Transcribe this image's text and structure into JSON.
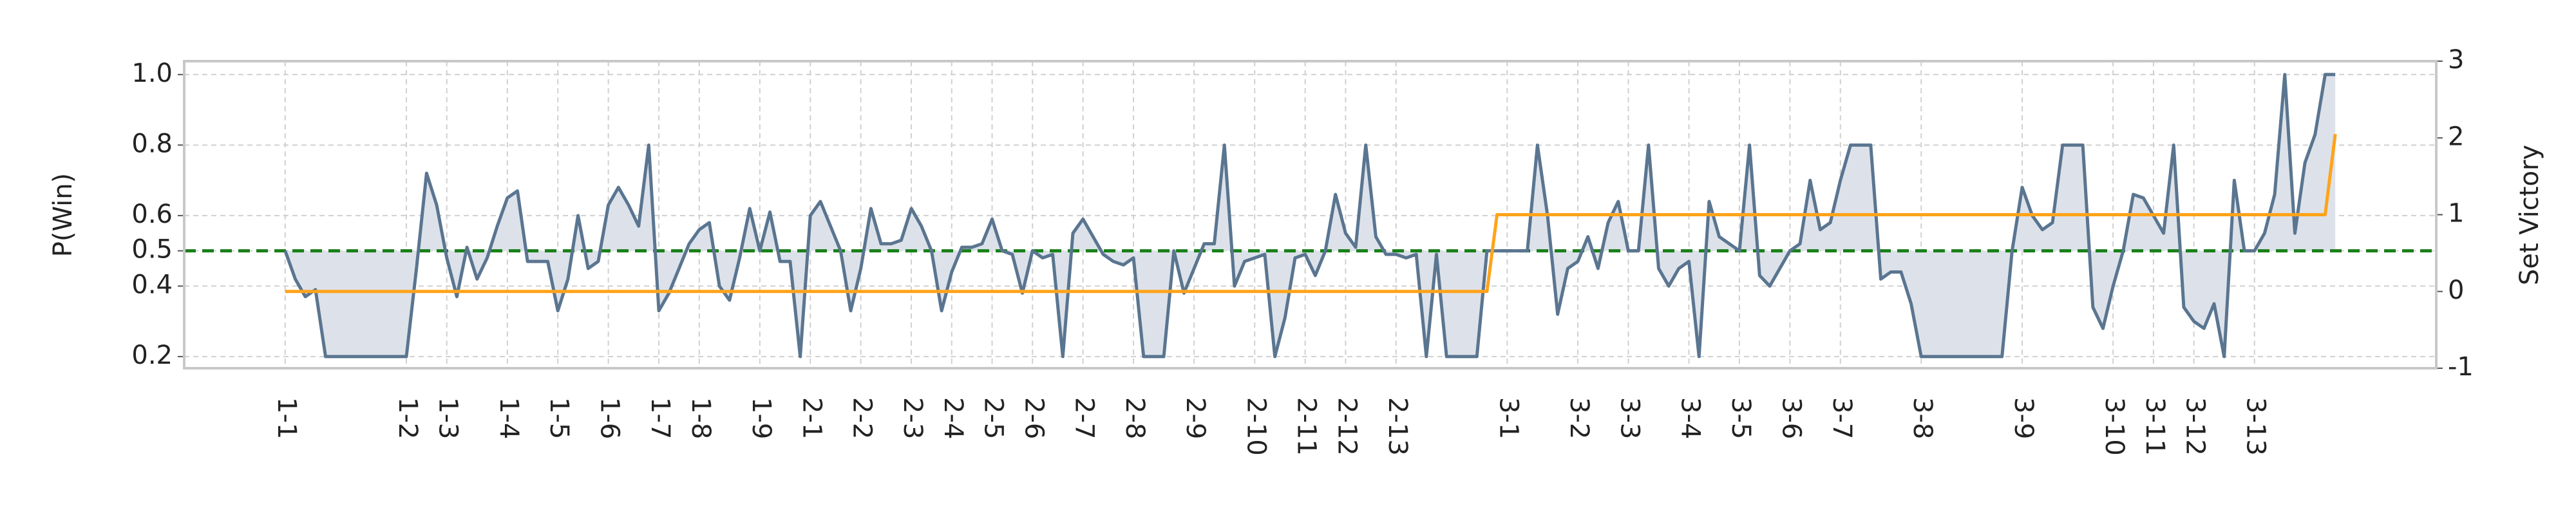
{
  "chart_data": {
    "type": "line",
    "y_label": "P(Win)",
    "y2_label": "Set Victory",
    "xlim": [
      -10,
      213
    ],
    "ylim": [
      0.167,
      1.038
    ],
    "y2lim": [
      -1,
      3
    ],
    "yticks": [
      0.2,
      0.4,
      0.5,
      0.6,
      0.8,
      {
        "value": 1.0,
        "label": "1.0"
      }
    ],
    "y2ticks": [
      -1,
      0,
      1,
      2,
      3
    ],
    "xticks": [
      {
        "value": 0,
        "label": "1-1"
      },
      {
        "value": 12,
        "label": "1-2"
      },
      {
        "value": 16,
        "label": "1-3"
      },
      {
        "value": 22,
        "label": "1-4"
      },
      {
        "value": 27,
        "label": "1-5"
      },
      {
        "value": 32,
        "label": "1-6"
      },
      {
        "value": 37,
        "label": "1-7"
      },
      {
        "value": 41,
        "label": "1-8"
      },
      {
        "value": 47,
        "label": "1-9"
      },
      {
        "value": 52,
        "label": "2-1"
      },
      {
        "value": 57,
        "label": "2-2"
      },
      {
        "value": 62,
        "label": "2-3"
      },
      {
        "value": 66,
        "label": "2-4"
      },
      {
        "value": 70,
        "label": "2-5"
      },
      {
        "value": 74,
        "label": "2-6"
      },
      {
        "value": 79,
        "label": "2-7"
      },
      {
        "value": 84,
        "label": "2-8"
      },
      {
        "value": 90,
        "label": "2-9"
      },
      {
        "value": 96,
        "label": "2-10"
      },
      {
        "value": 101,
        "label": "2-11"
      },
      {
        "value": 105,
        "label": "2-12"
      },
      {
        "value": 110,
        "label": "2-13"
      },
      {
        "value": 121,
        "label": "3-1"
      },
      {
        "value": 128,
        "label": "3-2"
      },
      {
        "value": 133,
        "label": "3-3"
      },
      {
        "value": 139,
        "label": "3-4"
      },
      {
        "value": 144,
        "label": "3-5"
      },
      {
        "value": 149,
        "label": "3-6"
      },
      {
        "value": 154,
        "label": "3-7"
      },
      {
        "value": 162,
        "label": "3-8"
      },
      {
        "value": 172,
        "label": "3-9"
      },
      {
        "value": 181,
        "label": "3-10"
      },
      {
        "value": 185,
        "label": "3-11"
      },
      {
        "value": 189,
        "label": "3-12"
      },
      {
        "value": 195,
        "label": "3-13"
      }
    ],
    "grid": true,
    "reference_line": {
      "value": 0.5,
      "color": "#1a7f1a"
    },
    "fill_baseline": 0.5,
    "fill_color": "#dde2ea",
    "series": [
      {
        "color": "#5a7590",
        "values": [
          0.5,
          0.42,
          0.37,
          0.39,
          0.2,
          0.2,
          0.2,
          0.2,
          0.2,
          0.2,
          0.2,
          0.2,
          0.2,
          0.45,
          0.72,
          0.63,
          0.48,
          0.37,
          0.51,
          0.42,
          0.48,
          0.57,
          0.65,
          0.67,
          0.47,
          0.47,
          0.47,
          0.33,
          0.42,
          0.6,
          0.45,
          0.47,
          0.63,
          0.68,
          0.63,
          0.57,
          0.8,
          0.33,
          0.38,
          0.45,
          0.52,
          0.56,
          0.58,
          0.4,
          0.36,
          0.48,
          0.62,
          0.5,
          0.61,
          0.47,
          0.47,
          0.2,
          0.6,
          0.64,
          0.57,
          0.5,
          0.33,
          0.45,
          0.62,
          0.52,
          0.52,
          0.53,
          0.62,
          0.57,
          0.5,
          0.33,
          0.44,
          0.51,
          0.51,
          0.52,
          0.59,
          0.5,
          0.49,
          0.38,
          0.5,
          0.48,
          0.49,
          0.2,
          0.55,
          0.59,
          0.54,
          0.49,
          0.47,
          0.46,
          0.48,
          0.2,
          0.2,
          0.2,
          0.5,
          0.38,
          0.45,
          0.52,
          0.52,
          0.8,
          0.4,
          0.47,
          0.48,
          0.49,
          0.2,
          0.31,
          0.48,
          0.49,
          0.43,
          0.5,
          0.66,
          0.55,
          0.51,
          0.8,
          0.54,
          0.49,
          0.49,
          0.48,
          0.49,
          0.2,
          0.49,
          0.2,
          0.2,
          0.2,
          0.2,
          0.5,
          0.5,
          0.5,
          0.5,
          0.5,
          0.8,
          0.6,
          0.32,
          0.45,
          0.47,
          0.54,
          0.45,
          0.58,
          0.64,
          0.5,
          0.5,
          0.8,
          0.45,
          0.4,
          0.45,
          0.47,
          0.2,
          0.64,
          0.54,
          0.52,
          0.5,
          0.8,
          0.43,
          0.4,
          0.45,
          0.5,
          0.52,
          0.7,
          0.56,
          0.58,
          0.7,
          0.8,
          0.8,
          0.8,
          0.42,
          0.44,
          0.44,
          0.35,
          0.2,
          0.2,
          0.2,
          0.2,
          0.2,
          0.2,
          0.2,
          0.2,
          0.2,
          0.5,
          0.68,
          0.6,
          0.56,
          0.58,
          0.8,
          0.8,
          0.8,
          0.34,
          0.28,
          0.4,
          0.5,
          0.66,
          0.65,
          0.6,
          0.55,
          0.8,
          0.34,
          0.3,
          0.28,
          0.35,
          0.2,
          0.7,
          0.5,
          0.5,
          0.55,
          0.66,
          1.0,
          0.55,
          0.75,
          0.83,
          1.0,
          1.0
        ]
      },
      {
        "color": "#ffa31a",
        "axis": "y2",
        "x": [
          0,
          119,
          120,
          202,
          203
        ],
        "values": [
          0,
          0,
          1,
          1,
          2.05
        ]
      }
    ]
  }
}
